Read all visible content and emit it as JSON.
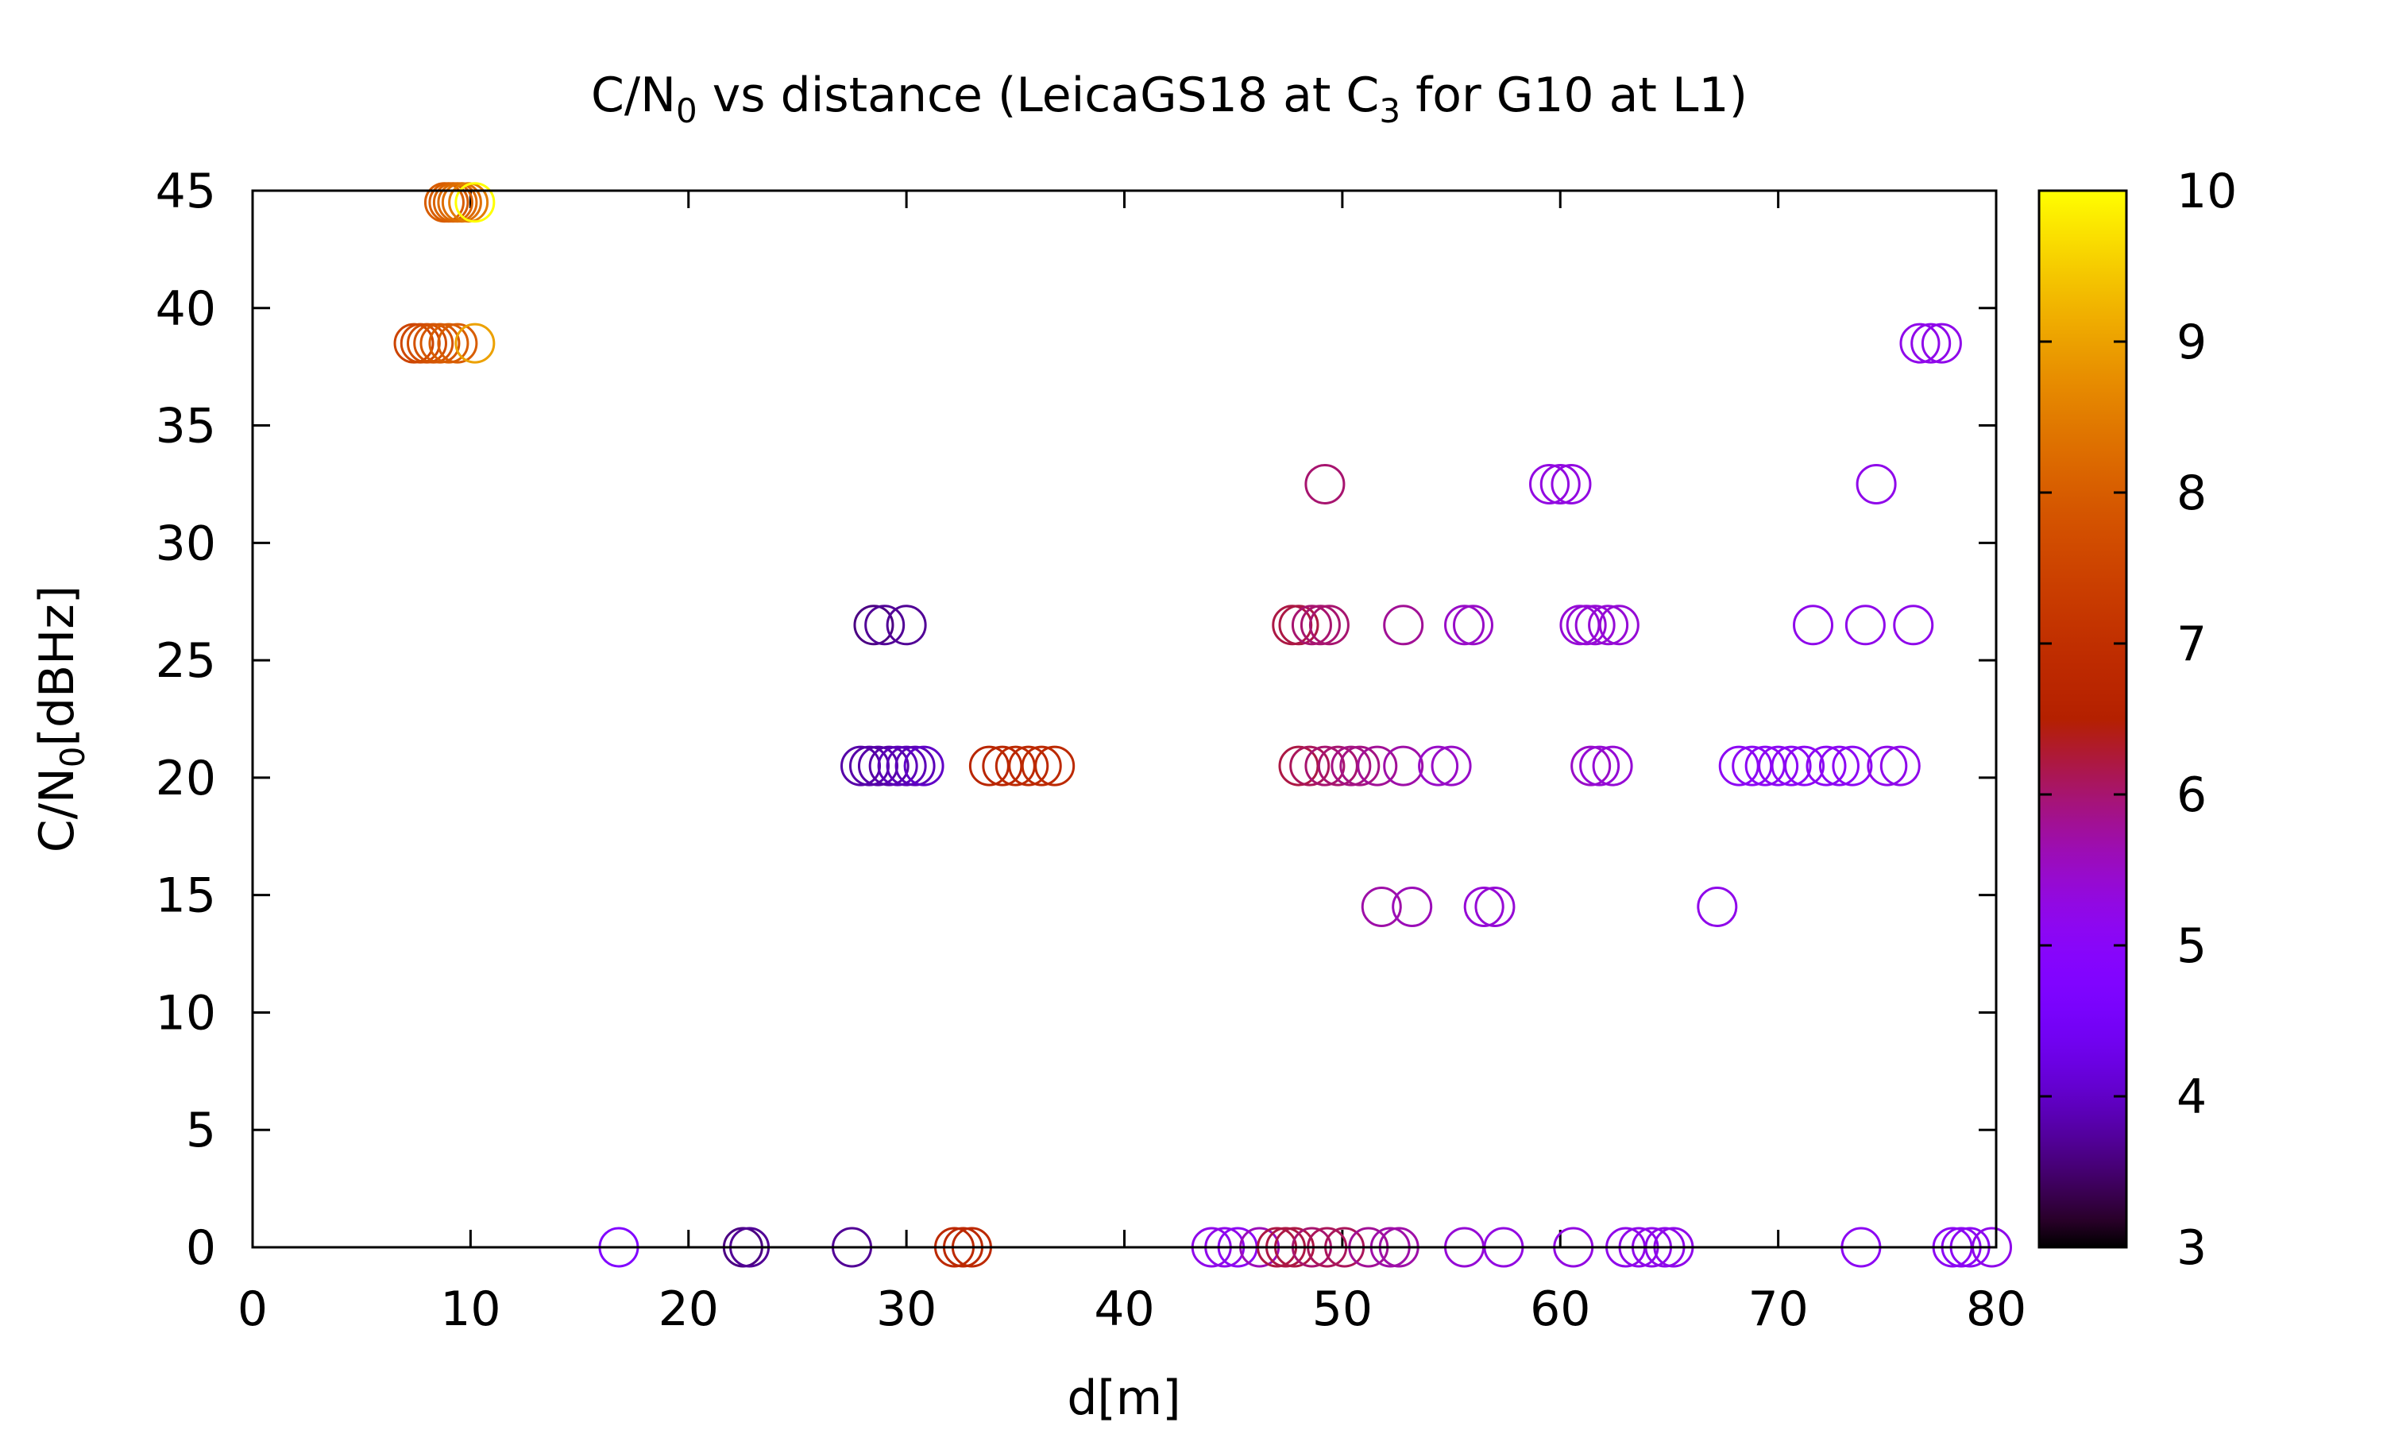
{
  "chart_data": {
    "type": "scatter",
    "title": "C/N0 vs distance (LeicaGS18 at C3 for G10 at L1)",
    "title_parts": {
      "a": "C/N",
      "a_sub": "0",
      "b": " vs distance (LeicaGS18 at C",
      "b_sub": "3",
      "c": " for G10 at L1)"
    },
    "xlabel": "d[m]",
    "ylabel": "C/N0[dBHz]",
    "ylabel_parts": {
      "a": "C/N",
      "a_sub": "0",
      "b": "[dBHz]"
    },
    "xlim": [
      0,
      80
    ],
    "ylim": [
      0,
      45
    ],
    "xticks": [
      0,
      10,
      20,
      30,
      40,
      50,
      60,
      70,
      80
    ],
    "yticks": [
      0,
      5,
      10,
      15,
      20,
      25,
      30,
      35,
      40,
      45
    ],
    "colorbar": {
      "range": [
        3,
        10
      ],
      "ticks": [
        3,
        4,
        5,
        6,
        7,
        8,
        9,
        10
      ],
      "palette": "gnuplot (black-purple-red-orange-yellow)"
    },
    "marker": "open circle",
    "grid": false,
    "points": [
      {
        "x": 8.8,
        "y": 44.5,
        "c": 8.0
      },
      {
        "x": 9.0,
        "y": 44.5,
        "c": 8.0
      },
      {
        "x": 9.2,
        "y": 44.5,
        "c": 8.1
      },
      {
        "x": 9.4,
        "y": 44.5,
        "c": 8.2
      },
      {
        "x": 9.6,
        "y": 44.5,
        "c": 8.3
      },
      {
        "x": 9.9,
        "y": 44.5,
        "c": 8.5
      },
      {
        "x": 10.2,
        "y": 44.5,
        "c": 10.0
      },
      {
        "x": 7.4,
        "y": 38.5,
        "c": 7.5
      },
      {
        "x": 7.7,
        "y": 38.5,
        "c": 7.6
      },
      {
        "x": 8.0,
        "y": 38.5,
        "c": 7.7
      },
      {
        "x": 8.3,
        "y": 38.5,
        "c": 7.8
      },
      {
        "x": 8.6,
        "y": 38.5,
        "c": 7.9
      },
      {
        "x": 9.0,
        "y": 38.5,
        "c": 8.0
      },
      {
        "x": 9.4,
        "y": 38.5,
        "c": 8.0
      },
      {
        "x": 10.2,
        "y": 38.5,
        "c": 9.0
      },
      {
        "x": 76.5,
        "y": 38.5,
        "c": 5.2
      },
      {
        "x": 77.0,
        "y": 38.5,
        "c": 5.2
      },
      {
        "x": 77.5,
        "y": 38.5,
        "c": 5.2
      },
      {
        "x": 49.2,
        "y": 32.5,
        "c": 6.0
      },
      {
        "x": 59.5,
        "y": 32.5,
        "c": 5.3
      },
      {
        "x": 60.0,
        "y": 32.5,
        "c": 5.3
      },
      {
        "x": 60.5,
        "y": 32.5,
        "c": 5.3
      },
      {
        "x": 74.5,
        "y": 32.5,
        "c": 5.2
      },
      {
        "x": 28.5,
        "y": 26.5,
        "c": 3.6
      },
      {
        "x": 29.0,
        "y": 26.5,
        "c": 3.7
      },
      {
        "x": 30.0,
        "y": 26.5,
        "c": 3.7
      },
      {
        "x": 47.7,
        "y": 26.5,
        "c": 6.2
      },
      {
        "x": 48.0,
        "y": 26.5,
        "c": 6.2
      },
      {
        "x": 48.6,
        "y": 26.5,
        "c": 6.0
      },
      {
        "x": 49.0,
        "y": 26.5,
        "c": 6.0
      },
      {
        "x": 49.4,
        "y": 26.5,
        "c": 6.0
      },
      {
        "x": 52.8,
        "y": 26.5,
        "c": 5.8
      },
      {
        "x": 55.6,
        "y": 26.5,
        "c": 5.5
      },
      {
        "x": 56.0,
        "y": 26.5,
        "c": 5.5
      },
      {
        "x": 60.9,
        "y": 26.5,
        "c": 5.4
      },
      {
        "x": 61.2,
        "y": 26.5,
        "c": 5.4
      },
      {
        "x": 61.6,
        "y": 26.5,
        "c": 5.4
      },
      {
        "x": 62.2,
        "y": 26.5,
        "c": 5.4
      },
      {
        "x": 62.7,
        "y": 26.5,
        "c": 5.4
      },
      {
        "x": 71.6,
        "y": 26.5,
        "c": 5.2
      },
      {
        "x": 74.0,
        "y": 26.5,
        "c": 5.2
      },
      {
        "x": 76.2,
        "y": 26.5,
        "c": 5.2
      },
      {
        "x": 27.9,
        "y": 20.5,
        "c": 3.8
      },
      {
        "x": 28.3,
        "y": 20.5,
        "c": 3.8
      },
      {
        "x": 28.7,
        "y": 20.5,
        "c": 3.8
      },
      {
        "x": 29.2,
        "y": 20.5,
        "c": 3.8
      },
      {
        "x": 29.6,
        "y": 20.5,
        "c": 3.9
      },
      {
        "x": 30.0,
        "y": 20.5,
        "c": 3.9
      },
      {
        "x": 30.4,
        "y": 20.5,
        "c": 3.9
      },
      {
        "x": 30.8,
        "y": 20.5,
        "c": 4.0
      },
      {
        "x": 33.8,
        "y": 20.5,
        "c": 6.7
      },
      {
        "x": 34.4,
        "y": 20.5,
        "c": 6.7
      },
      {
        "x": 35.0,
        "y": 20.5,
        "c": 6.8
      },
      {
        "x": 35.6,
        "y": 20.5,
        "c": 6.8
      },
      {
        "x": 36.2,
        "y": 20.5,
        "c": 6.8
      },
      {
        "x": 36.8,
        "y": 20.5,
        "c": 6.8
      },
      {
        "x": 48.0,
        "y": 20.5,
        "c": 6.2
      },
      {
        "x": 48.5,
        "y": 20.5,
        "c": 6.1
      },
      {
        "x": 49.2,
        "y": 20.5,
        "c": 6.0
      },
      {
        "x": 49.8,
        "y": 20.5,
        "c": 6.0
      },
      {
        "x": 50.4,
        "y": 20.5,
        "c": 5.9
      },
      {
        "x": 50.8,
        "y": 20.5,
        "c": 5.9
      },
      {
        "x": 51.6,
        "y": 20.5,
        "c": 5.8
      },
      {
        "x": 52.8,
        "y": 20.5,
        "c": 5.7
      },
      {
        "x": 54.4,
        "y": 20.5,
        "c": 5.5
      },
      {
        "x": 55.0,
        "y": 20.5,
        "c": 5.5
      },
      {
        "x": 61.4,
        "y": 20.5,
        "c": 5.5
      },
      {
        "x": 61.8,
        "y": 20.5,
        "c": 5.4
      },
      {
        "x": 62.4,
        "y": 20.5,
        "c": 5.4
      },
      {
        "x": 68.2,
        "y": 20.5,
        "c": 5.1
      },
      {
        "x": 68.8,
        "y": 20.5,
        "c": 5.1
      },
      {
        "x": 69.4,
        "y": 20.5,
        "c": 5.1
      },
      {
        "x": 70.0,
        "y": 20.5,
        "c": 5.1
      },
      {
        "x": 70.6,
        "y": 20.5,
        "c": 5.1
      },
      {
        "x": 71.2,
        "y": 20.5,
        "c": 5.1
      },
      {
        "x": 72.2,
        "y": 20.5,
        "c": 5.1
      },
      {
        "x": 72.8,
        "y": 20.5,
        "c": 5.1
      },
      {
        "x": 73.4,
        "y": 20.5,
        "c": 5.1
      },
      {
        "x": 75.0,
        "y": 20.5,
        "c": 5.2
      },
      {
        "x": 75.6,
        "y": 20.5,
        "c": 5.2
      },
      {
        "x": 51.8,
        "y": 14.5,
        "c": 5.7
      },
      {
        "x": 53.2,
        "y": 14.5,
        "c": 5.6
      },
      {
        "x": 56.5,
        "y": 14.5,
        "c": 5.4
      },
      {
        "x": 57.0,
        "y": 14.5,
        "c": 5.4
      },
      {
        "x": 67.2,
        "y": 14.5,
        "c": 5.2
      },
      {
        "x": 16.8,
        "y": 0,
        "c": 4.8
      },
      {
        "x": 22.5,
        "y": 0,
        "c": 3.6
      },
      {
        "x": 22.8,
        "y": 0,
        "c": 3.7
      },
      {
        "x": 27.5,
        "y": 0,
        "c": 3.7
      },
      {
        "x": 32.2,
        "y": 0,
        "c": 6.8
      },
      {
        "x": 32.6,
        "y": 0,
        "c": 6.8
      },
      {
        "x": 33.0,
        "y": 0,
        "c": 6.8
      },
      {
        "x": 44.0,
        "y": 0,
        "c": 5.2
      },
      {
        "x": 44.6,
        "y": 0,
        "c": 5.2
      },
      {
        "x": 45.2,
        "y": 0,
        "c": 5.1
      },
      {
        "x": 46.2,
        "y": 0,
        "c": 5.6
      },
      {
        "x": 47.0,
        "y": 0,
        "c": 6.2
      },
      {
        "x": 47.4,
        "y": 0,
        "c": 6.2
      },
      {
        "x": 47.8,
        "y": 0,
        "c": 6.2
      },
      {
        "x": 48.6,
        "y": 0,
        "c": 6.0
      },
      {
        "x": 49.3,
        "y": 0,
        "c": 6.1
      },
      {
        "x": 50.1,
        "y": 0,
        "c": 6.1
      },
      {
        "x": 51.2,
        "y": 0,
        "c": 5.8
      },
      {
        "x": 52.2,
        "y": 0,
        "c": 5.7
      },
      {
        "x": 52.6,
        "y": 0,
        "c": 5.7
      },
      {
        "x": 55.6,
        "y": 0,
        "c": 5.4
      },
      {
        "x": 57.4,
        "y": 0,
        "c": 5.3
      },
      {
        "x": 60.6,
        "y": 0,
        "c": 5.3
      },
      {
        "x": 63.0,
        "y": 0,
        "c": 5.2
      },
      {
        "x": 63.6,
        "y": 0,
        "c": 5.2
      },
      {
        "x": 64.2,
        "y": 0,
        "c": 5.2
      },
      {
        "x": 64.8,
        "y": 0,
        "c": 5.2
      },
      {
        "x": 65.2,
        "y": 0,
        "c": 5.2
      },
      {
        "x": 73.8,
        "y": 0,
        "c": 5.1
      },
      {
        "x": 78.0,
        "y": 0,
        "c": 5.1
      },
      {
        "x": 78.4,
        "y": 0,
        "c": 5.1
      },
      {
        "x": 78.8,
        "y": 0,
        "c": 5.1
      },
      {
        "x": 79.8,
        "y": 0,
        "c": 5.2
      }
    ]
  }
}
